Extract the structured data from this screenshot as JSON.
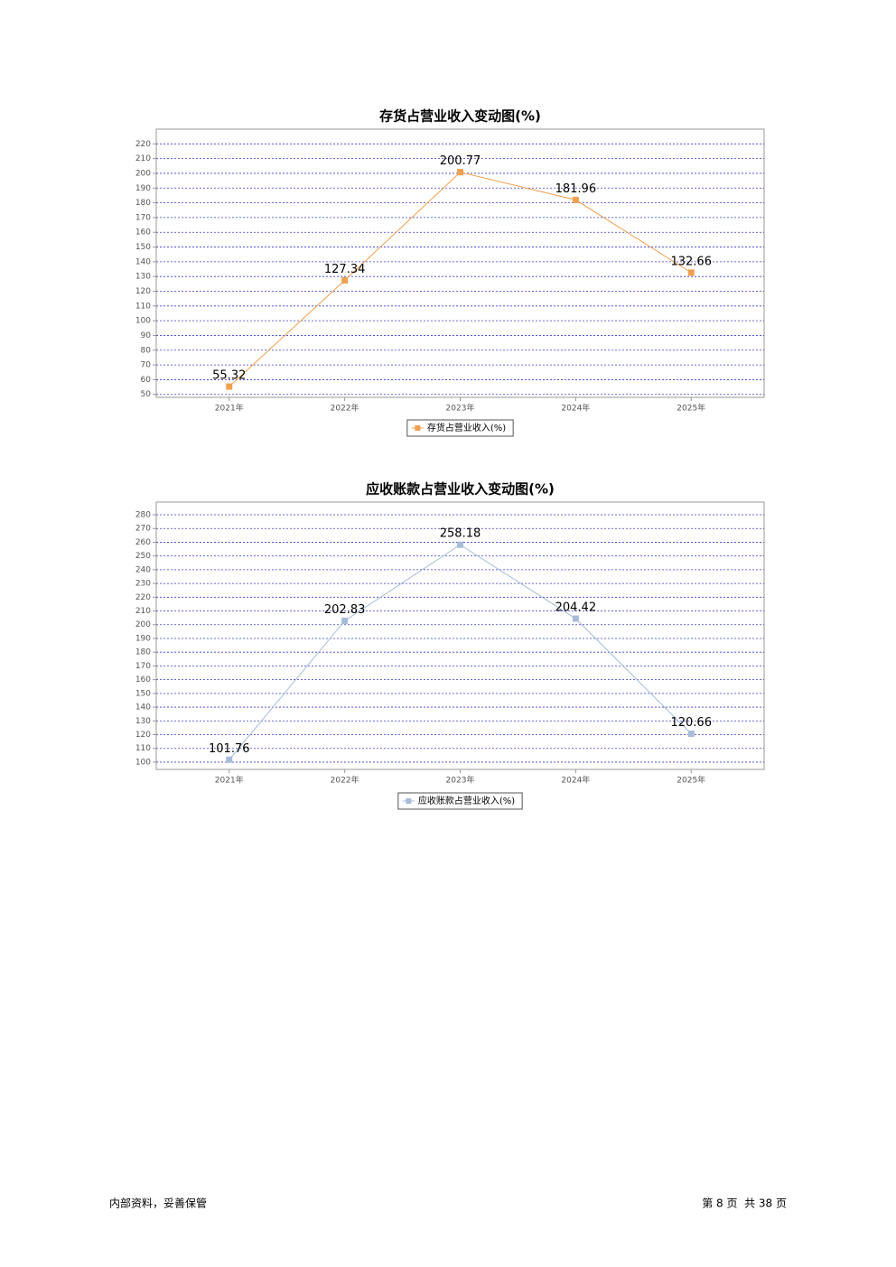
{
  "chart_data": [
    {
      "type": "line",
      "title": "存货占营业收入变动图(%)",
      "categories": [
        "2021年",
        "2022年",
        "2023年",
        "2024年",
        "2025年"
      ],
      "series": [
        {
          "name": "存货占营业收入(%)",
          "color": "#f0a050",
          "values": [
            55.32,
            127.34,
            200.77,
            181.96,
            132.66
          ]
        }
      ],
      "ylim": [
        48,
        230
      ],
      "yticks": [
        50,
        60,
        70,
        80,
        90,
        100,
        110,
        120,
        130,
        140,
        150,
        160,
        170,
        180,
        190,
        200,
        210,
        220
      ],
      "grid": true
    },
    {
      "type": "line",
      "title": "应收账款占营业收入变动图(%)",
      "categories": [
        "2021年",
        "2022年",
        "2023年",
        "2024年",
        "2025年"
      ],
      "series": [
        {
          "name": "应收账款占营业收入(%)",
          "color": "#a8bcd8",
          "values": [
            101.76,
            202.83,
            258.18,
            204.42,
            120.66
          ]
        }
      ],
      "ylim": [
        94.7,
        289.2
      ],
      "yticks": [
        100,
        110,
        120,
        130,
        140,
        150,
        160,
        170,
        180,
        190,
        200,
        210,
        220,
        230,
        240,
        250,
        260,
        270,
        280
      ],
      "grid": true
    }
  ],
  "footer": {
    "left": "内部资料，妥善保管",
    "right": "第 8 页  共 38 页"
  }
}
